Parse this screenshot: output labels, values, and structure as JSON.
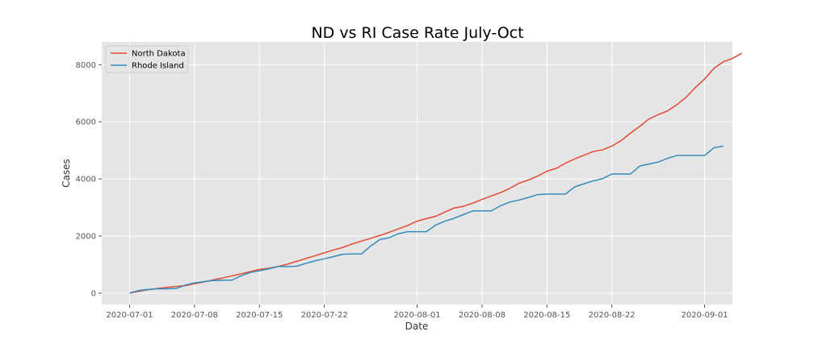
{
  "chart_data": {
    "type": "line",
    "title": "ND vs RI Case Rate July-Oct",
    "xlabel": "Date",
    "ylabel": "Cases",
    "grid": true,
    "legend_position": "top-left",
    "xlim": [
      "2020-06-28",
      "2020-09-04"
    ],
    "ylim": [
      -400,
      8800
    ],
    "x_ticks": [
      "2020-07-01",
      "2020-07-08",
      "2020-07-15",
      "2020-07-22",
      "2020-08-01",
      "2020-08-08",
      "2020-08-15",
      "2020-08-22",
      "2020-09-01"
    ],
    "y_ticks": [
      0,
      2000,
      4000,
      6000,
      8000
    ],
    "start_date": "2020-07-01",
    "series": [
      {
        "name": "North Dakota",
        "color": "#e24a33",
        "values": [
          0,
          60,
          120,
          160,
          200,
          230,
          260,
          330,
          390,
          460,
          530,
          600,
          670,
          750,
          830,
          870,
          930,
          1010,
          1110,
          1210,
          1310,
          1410,
          1510,
          1600,
          1720,
          1820,
          1920,
          2020,
          2130,
          2250,
          2370,
          2520,
          2610,
          2690,
          2840,
          2980,
          3040,
          3150,
          3280,
          3400,
          3520,
          3670,
          3850,
          3960,
          4100,
          4270,
          4370,
          4550,
          4700,
          4830,
          4960,
          5020,
          5150,
          5340,
          5600,
          5840,
          6100,
          6250,
          6380,
          6600,
          6860,
          7200,
          7500,
          7870,
          8100,
          8220,
          8400
        ]
      },
      {
        "name": "Rhode Island",
        "color": "#348abd",
        "values": [
          0,
          90,
          130,
          150,
          150,
          160,
          280,
          360,
          400,
          440,
          450,
          450,
          600,
          720,
          780,
          850,
          930,
          930,
          940,
          1040,
          1130,
          1200,
          1280,
          1360,
          1370,
          1370,
          1650,
          1880,
          1940,
          2080,
          2150,
          2150,
          2150,
          2380,
          2520,
          2620,
          2750,
          2880,
          2880,
          2880,
          3060,
          3190,
          3260,
          3350,
          3450,
          3470,
          3470,
          3470,
          3720,
          3830,
          3930,
          4010,
          4170,
          4170,
          4170,
          4450,
          4520,
          4590,
          4720,
          4820,
          4820,
          4820,
          4820,
          5090,
          5150
        ]
      }
    ]
  }
}
